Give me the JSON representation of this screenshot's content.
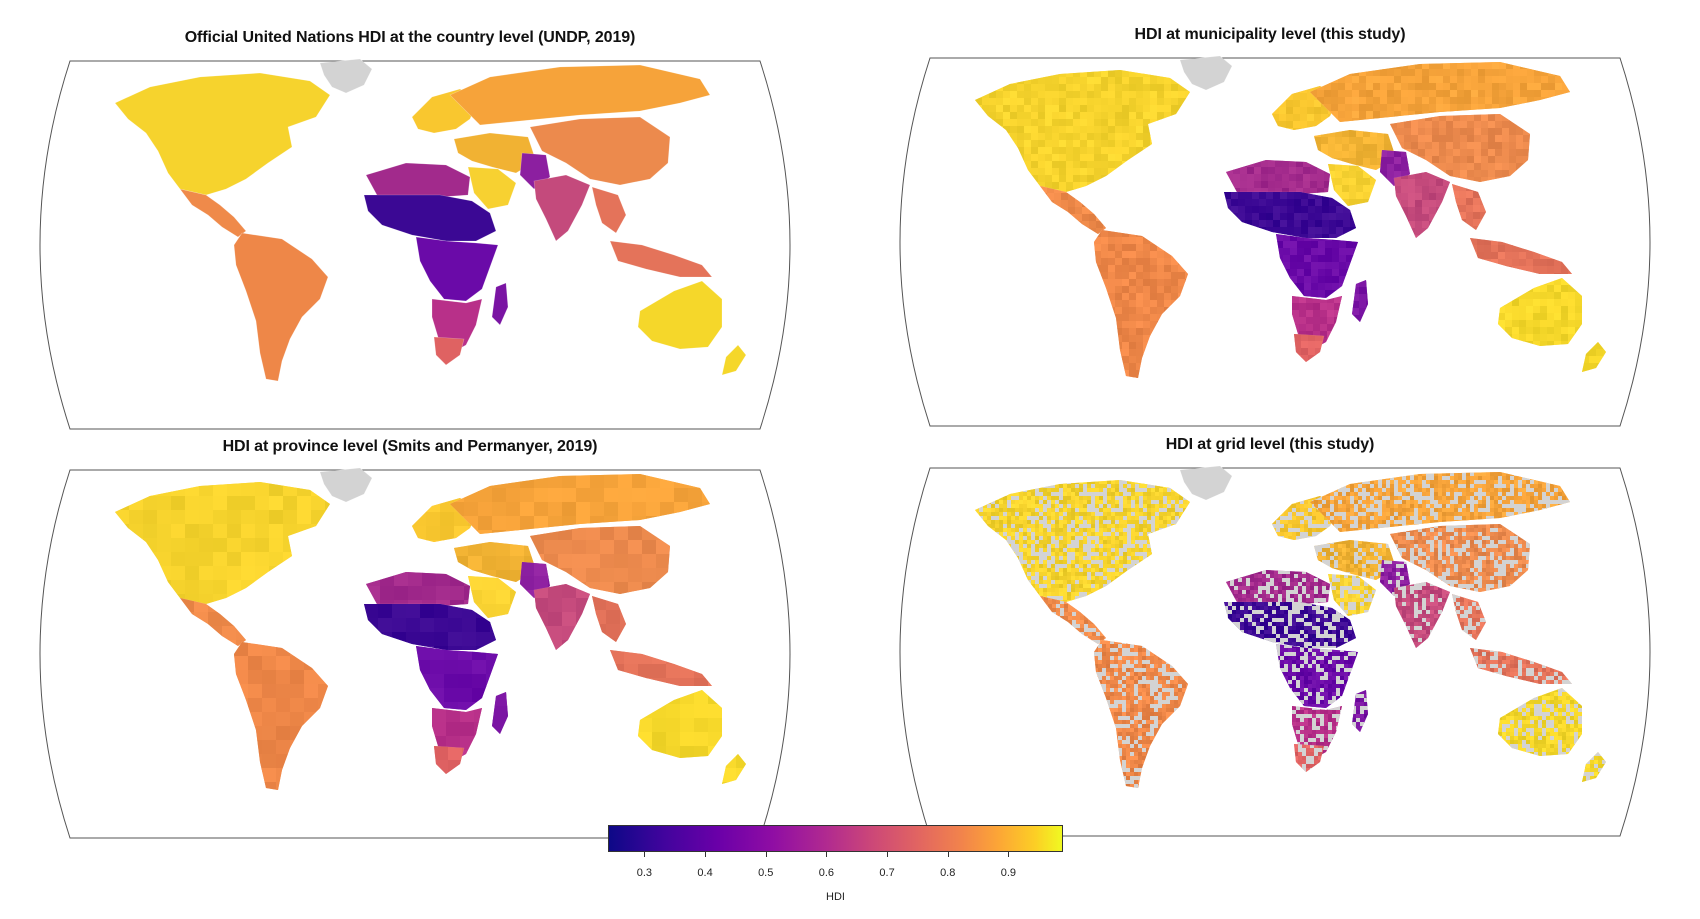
{
  "panels": [
    {
      "id": "country",
      "title": "Official United Nations HDI at the country level (UNDP, 2019)",
      "style": "country"
    },
    {
      "id": "municipality",
      "title": "HDI at municipality level (this study)",
      "style": "municipality"
    },
    {
      "id": "province",
      "title": "HDI at province level (Smits and Permanyer, 2019)",
      "style": "province"
    },
    {
      "id": "grid",
      "title": "HDI at grid level (this study)",
      "style": "grid"
    }
  ],
  "colorbar": {
    "label": "HDI",
    "ticks": [
      "0.3",
      "0.4",
      "0.5",
      "0.6",
      "0.7",
      "0.8",
      "0.9"
    ],
    "tick_values": [
      0.3,
      0.4,
      0.5,
      0.6,
      0.7,
      0.8,
      0.9
    ],
    "range": [
      0.24,
      0.99
    ],
    "colormap": "plasma",
    "no_data_color": "#d3d3d3"
  },
  "region_colors": {
    "north_america": "#f6d32d",
    "central_america": "#ef8a4a",
    "south_america": "#ee8748",
    "europe": "#f9c72f",
    "russia": "#f6a33a",
    "middle_east": "#f1b233",
    "saudi": "#f7d131",
    "north_africa": "#a22a8c",
    "sahel": "#3b0894",
    "central_africa": "#6a0aa8",
    "southern_africa": "#b83089",
    "south_africa": "#df6262",
    "madagascar": "#7a14a3",
    "india": "#c44a7c",
    "pakistan": "#8c1fa0",
    "china": "#ec8a4d",
    "southeast_asia": "#e4735a",
    "australia": "#f5d72a",
    "new_zealand": "#f5d72a",
    "greenland": "#d3d3d3"
  }
}
